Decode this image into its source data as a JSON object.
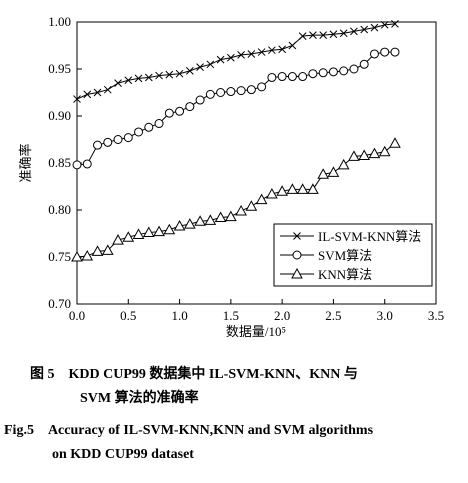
{
  "chart_data": {
    "type": "line",
    "x_label": "数据量/10⁵",
    "y_label": "准确率",
    "x": [
      0.0,
      0.1,
      0.2,
      0.3,
      0.4,
      0.5,
      0.6,
      0.7,
      0.8,
      0.9,
      1.0,
      1.1,
      1.2,
      1.3,
      1.4,
      1.5,
      1.6,
      1.7,
      1.8,
      1.9,
      2.0,
      2.1,
      2.2,
      2.3,
      2.4,
      2.5,
      2.6,
      2.7,
      2.8,
      2.9,
      3.0,
      3.1
    ],
    "series": [
      {
        "name": "IL-SVM-KNN算法",
        "color": "#000000",
        "marker": "x",
        "values": [
          0.918,
          0.923,
          0.925,
          0.928,
          0.935,
          0.938,
          0.94,
          0.941,
          0.943,
          0.944,
          0.945,
          0.948,
          0.952,
          0.955,
          0.96,
          0.962,
          0.965,
          0.966,
          0.968,
          0.97,
          0.971,
          0.975,
          0.985,
          0.986,
          0.986,
          0.987,
          0.988,
          0.99,
          0.992,
          0.994,
          0.997,
          0.998
        ]
      },
      {
        "name": "SVM算法",
        "color": "#000000",
        "marker": "circle",
        "values": [
          0.848,
          0.849,
          0.869,
          0.872,
          0.875,
          0.877,
          0.883,
          0.888,
          0.892,
          0.903,
          0.905,
          0.91,
          0.917,
          0.923,
          0.925,
          0.926,
          0.927,
          0.928,
          0.931,
          0.941,
          0.942,
          0.942,
          0.942,
          0.945,
          0.946,
          0.947,
          0.948,
          0.95,
          0.955,
          0.966,
          0.968,
          0.968
        ]
      },
      {
        "name": "KNN算法",
        "color": "#000000",
        "marker": "triangle",
        "values": [
          0.75,
          0.751,
          0.756,
          0.757,
          0.768,
          0.771,
          0.774,
          0.776,
          0.777,
          0.779,
          0.783,
          0.785,
          0.788,
          0.789,
          0.792,
          0.793,
          0.799,
          0.804,
          0.811,
          0.817,
          0.82,
          0.822,
          0.822,
          0.822,
          0.838,
          0.84,
          0.848,
          0.857,
          0.858,
          0.86,
          0.862,
          0.871
        ]
      }
    ],
    "xlim": [
      0,
      3.5
    ],
    "ylim": [
      0.7,
      1.0
    ],
    "xticks": [
      {
        "value": 0,
        "label": "0.0"
      },
      0.5,
      {
        "value": 1,
        "label": "1.0"
      },
      1.5,
      {
        "value": 2,
        "label": "2.0"
      },
      2.5,
      {
        "value": 3,
        "label": "3.0"
      },
      3.5
    ],
    "yticks": [
      {
        "value": 0.7,
        "label": "0.70"
      },
      0.75,
      {
        "value": 0.8,
        "label": "0.80"
      },
      0.85,
      {
        "value": 0.9,
        "label": "0.90"
      },
      0.95,
      {
        "value": 1,
        "label": "1.00"
      }
    ],
    "legend": "lower right",
    "grid": false
  },
  "caption": {
    "cn": [
      "图 5　KDD CUP99 数据集中 IL-SVM-KNN、KNN 与",
      "SVM 算法的准确率"
    ],
    "en": [
      "Fig.5　Accuracy of IL-SVM-KNN,KNN and SVM algorithms",
      "on KDD CUP99 dataset"
    ]
  }
}
